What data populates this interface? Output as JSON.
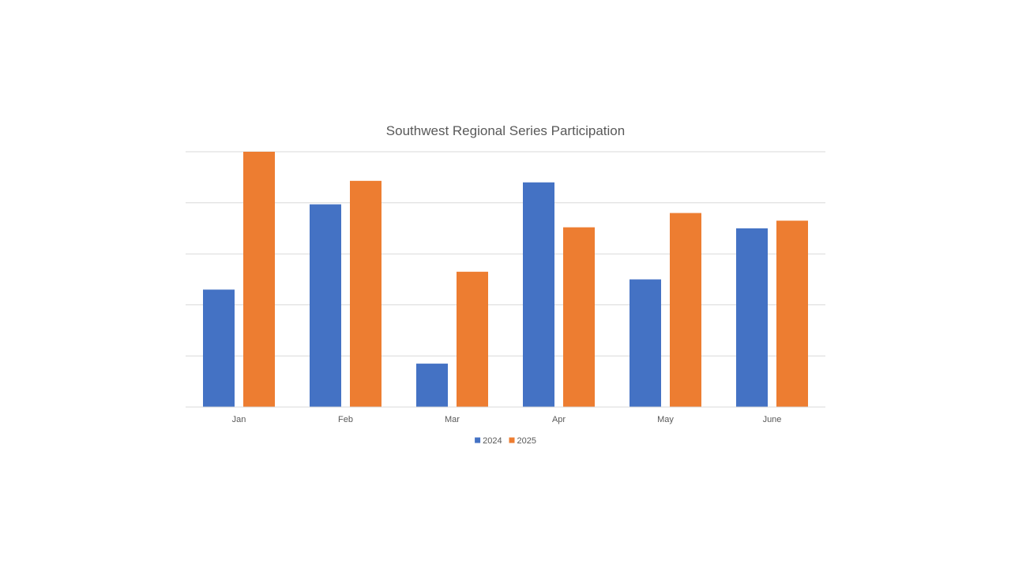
{
  "chart_data": {
    "type": "bar",
    "title": "Southwest Regional Series Participation",
    "categories": [
      "Jan",
      "Feb",
      "Mar",
      "Apr",
      "May",
      "June"
    ],
    "series": [
      {
        "name": "2024",
        "color": "#4472C4",
        "values": [
          23,
          39.7,
          8.5,
          44,
          25,
          35
        ]
      },
      {
        "name": "2025",
        "color": "#ED7D31",
        "values": [
          50,
          44.3,
          26.5,
          35.2,
          38,
          36.5
        ]
      }
    ],
    "ylim": [
      0,
      50
    ],
    "ytick_step": 10,
    "y_tick_labels_visible": false,
    "grid": true,
    "legend": "bottom-center",
    "xlabel": "",
    "ylabel": ""
  }
}
